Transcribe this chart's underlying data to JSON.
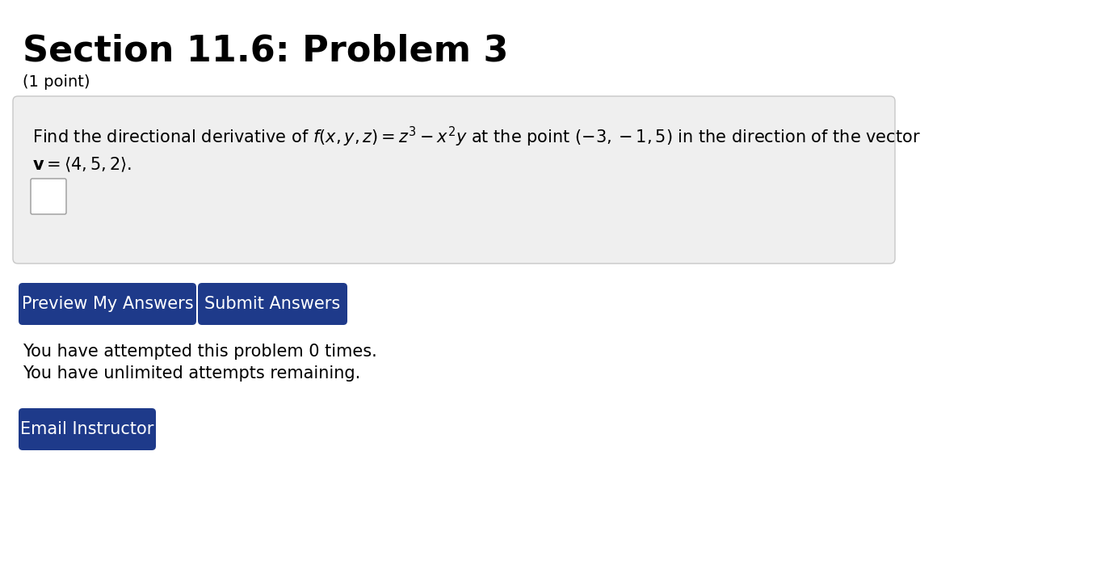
{
  "title": "Section 11.6: Problem 3",
  "subtitle": "(1 point)",
  "problem_text_1": "Find the directional derivative of $f(x, y, z) = z^3 - x^2y$ at the point $(-3, -1, 5)$ in the direction of the vector",
  "problem_text_2": "$\\mathbf{v} = \\langle 4, 5, 2 \\rangle.$",
  "btn1_text": "Preview My Answers",
  "btn2_text": "Submit Answers",
  "btn_color": "#1e3a8a",
  "btn_text_color": "#ffffff",
  "attempt_text1": "You have attempted this problem 0 times.",
  "attempt_text2": "You have unlimited attempts remaining.",
  "email_btn_text": "Email Instructor",
  "bg_color": "#ffffff",
  "box_bg_color": "#efefef",
  "box_border_color": "#c8c8c8",
  "title_fontsize": 32,
  "subtitle_fontsize": 14,
  "problem_fontsize": 15,
  "body_fontsize": 15,
  "btn_fontsize": 15
}
